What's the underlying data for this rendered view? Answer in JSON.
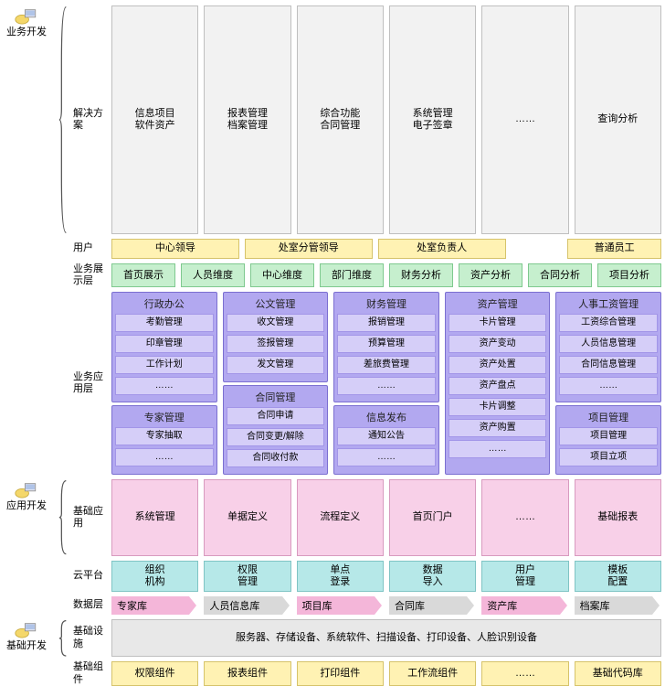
{
  "colors": {
    "gray_bg": "#f2f2f2",
    "gray_bd": "#bfbfbf",
    "yellow_bg": "#fff2b3",
    "yellow_bd": "#d6c36a",
    "green_bg": "#c6efce",
    "green_bd": "#7fc98f",
    "purple_panel": "#b2a8f0",
    "purple_item": "#d5cef8",
    "purple_bd": "#7b6fd1",
    "pink_bg": "#f8d0e8",
    "pink_bd": "#d89abf",
    "cyan_bg": "#b6e8e8",
    "cyan_bd": "#7fc4c4",
    "pink_arrow": "#f4b6d9",
    "gray_arrow": "#d9d9d9",
    "lt_gray": "#e8e8e8"
  },
  "sections": [
    {
      "label": "业务开发",
      "rows": [
        "解决方案",
        "用户",
        "业务展示层",
        "业务应用层"
      ]
    },
    {
      "label": "应用开发",
      "rows": [
        "基础应用",
        "云平台",
        "数据层"
      ]
    },
    {
      "label": "基础开发",
      "rows": [
        "基础设施",
        "基础组件"
      ]
    }
  ],
  "r_solution": [
    [
      "信息项目",
      "软件资产"
    ],
    [
      "报表管理",
      "档案管理"
    ],
    [
      "综合功能",
      "合同管理"
    ],
    [
      "系统管理",
      "电子签章"
    ],
    [
      "……"
    ],
    [
      "查询分析"
    ]
  ],
  "r_user": [
    "中心领导",
    "处室分管领导",
    "处室负责人",
    "普通员工"
  ],
  "r_display": [
    "首页展示",
    "人员维度",
    "中心维度",
    "部门维度",
    "财务分析",
    "资产分析",
    "合同分析",
    "项目分析"
  ],
  "r_app": {
    "cols": [
      [
        {
          "h": "行政办公",
          "items": [
            "考勤管理",
            "印章管理",
            "工作计划",
            "……"
          ]
        },
        {
          "h": "专家管理",
          "items": [
            "专家抽取",
            "……"
          ]
        }
      ],
      [
        {
          "h": "公文管理",
          "items": [
            "收文管理",
            "签报管理",
            "发文管理"
          ]
        },
        {
          "h": "合同管理",
          "items": [
            "合同申请",
            "合同变更/解除",
            "合同收付款"
          ]
        }
      ],
      [
        {
          "h": "财务管理",
          "items": [
            "报销管理",
            "预算管理",
            "差旅费管理",
            "……"
          ]
        },
        {
          "h": "信息发布",
          "items": [
            "通知公告",
            "……"
          ]
        }
      ],
      [
        {
          "h": "资产管理",
          "items": [
            "卡片管理",
            "资产变动",
            "资产处置",
            "资产盘点",
            "卡片调整",
            "资产购置",
            "……"
          ]
        }
      ],
      [
        {
          "h": "人事工资管理",
          "items": [
            "工资综合管理",
            "人员信息管理",
            "合同信息管理",
            "……"
          ]
        },
        {
          "h": "项目管理",
          "items": [
            "项目管理",
            "项目立项"
          ]
        }
      ]
    ]
  },
  "r_base": [
    "系统管理",
    "单据定义",
    "流程定义",
    "首页门户",
    "……",
    "基础报表"
  ],
  "r_cloud": [
    [
      "组织",
      "机构"
    ],
    [
      "权限",
      "管理"
    ],
    [
      "单点",
      "登录"
    ],
    [
      "数据",
      "导入"
    ],
    [
      "用户",
      "管理"
    ],
    [
      "模板",
      "配置"
    ]
  ],
  "r_data": [
    "专家库",
    "人员信息库",
    "项目库",
    "合同库",
    "资产库",
    "档案库"
  ],
  "r_infra": "服务器、存储设备、系统软件、扫描设备、打印设备、人脸识别设备",
  "r_comp": [
    "权限组件",
    "报表组件",
    "打印组件",
    "工作流组件",
    "……",
    "基础代码库"
  ]
}
